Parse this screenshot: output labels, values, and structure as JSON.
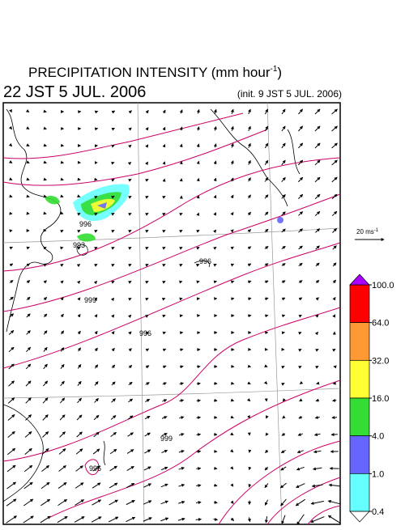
{
  "header": {
    "title": {
      "text": "PRECIPITATION INTENSITY (mm hour",
      "sup": "-1",
      "close": ")"
    },
    "valid_time": "22 JST 5 JUL. 2006",
    "init_time": "(init. 9 JST 5 JUL. 2006)"
  },
  "scale_arrow": {
    "text": "20 ms",
    "sup": "-1"
  },
  "colorbar": {
    "ticks": [
      {
        "value": 100,
        "label": "100.0"
      },
      {
        "value": 64,
        "label": "64.0"
      },
      {
        "value": 32,
        "label": "32.0"
      },
      {
        "value": 16,
        "label": "16.0"
      },
      {
        "value": 4,
        "label": "4.0"
      },
      {
        "value": 1,
        "label": "1.0"
      },
      0.4
    ],
    "colors": [
      "#ff0000",
      "#ff9933",
      "#ffff33",
      "#33dd33",
      "#6666ff",
      "#66ffff"
    ],
    "over_color": "#aa00ff",
    "under_color": "#ffffff"
  },
  "contour_labels": [
    993,
    996,
    999,
    996,
    996,
    999,
    996
  ]
}
